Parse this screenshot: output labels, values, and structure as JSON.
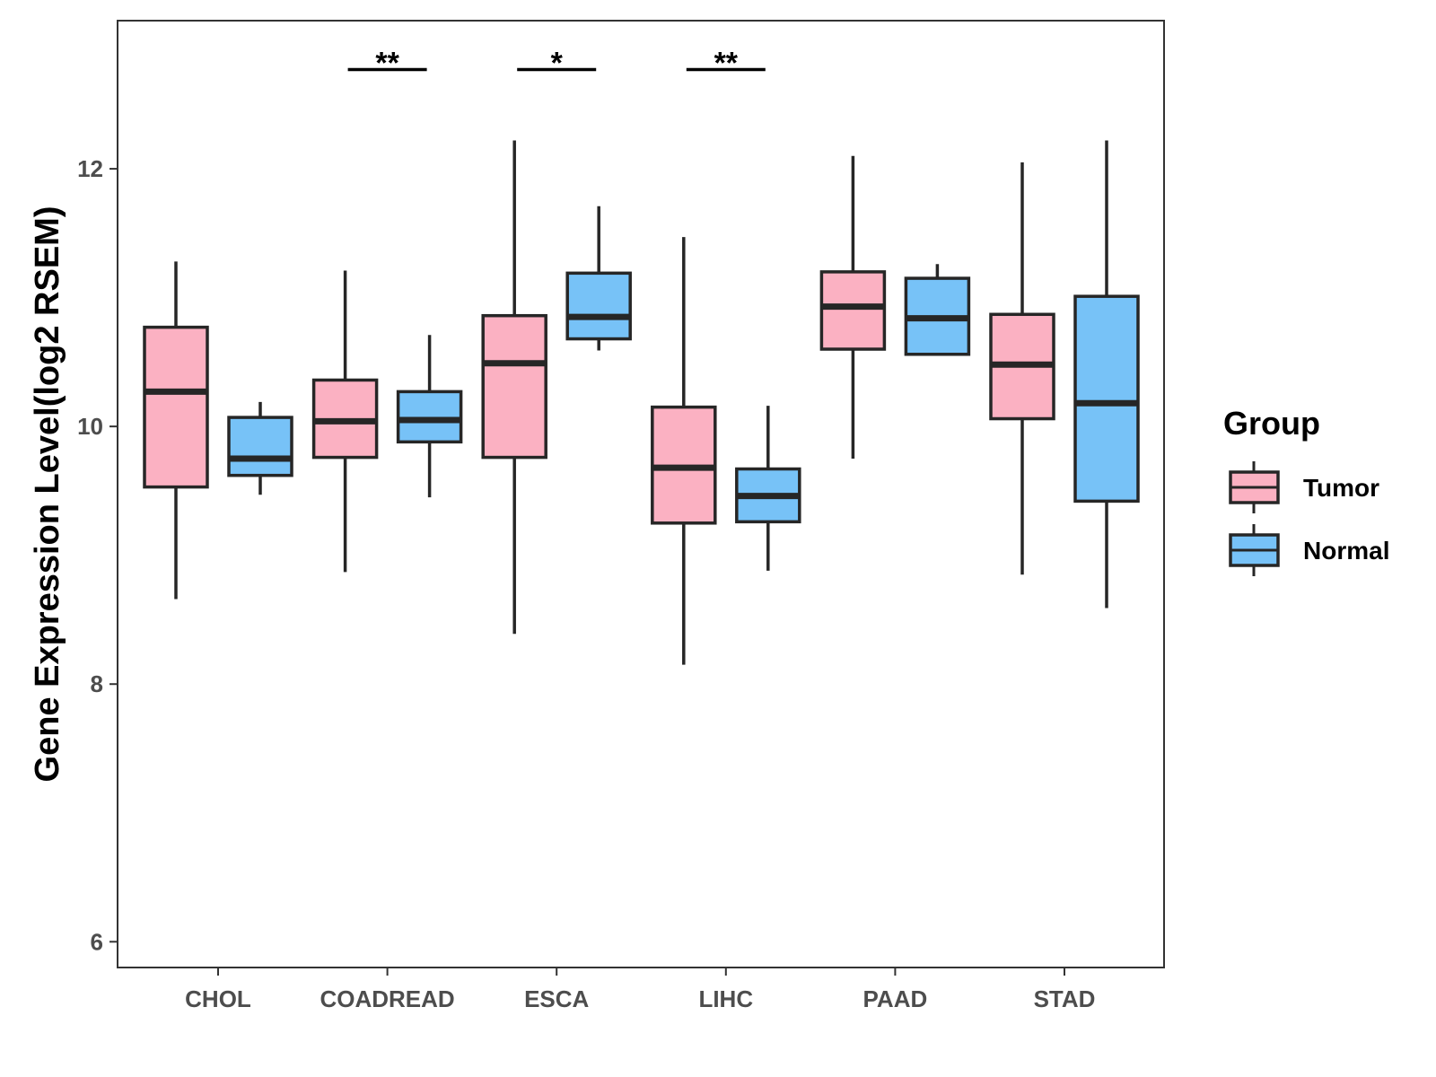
{
  "chart_data": {
    "type": "boxplot",
    "xlabel": "",
    "ylabel": "Gene Expression Level(log2 RSEM)",
    "ylim": [
      5.8,
      13.15
    ],
    "yticks": [
      6,
      8,
      10,
      12
    ],
    "categories": [
      "CHOL",
      "COADREAD",
      "ESCA",
      "LIHC",
      "PAAD",
      "STAD"
    ],
    "legend": {
      "title": "Group",
      "position": "right",
      "entries": [
        "Tumor",
        "Normal"
      ]
    },
    "series": [
      {
        "name": "Tumor",
        "color": "#FBB1C2",
        "boxes": [
          {
            "category": "CHOL",
            "min": 8.66,
            "q1": 9.53,
            "median": 10.27,
            "q3": 10.77,
            "max": 11.28
          },
          {
            "category": "COADREAD",
            "min": 8.87,
            "q1": 9.76,
            "median": 10.04,
            "q3": 10.36,
            "max": 11.21
          },
          {
            "category": "ESCA",
            "min": 8.39,
            "q1": 9.76,
            "median": 10.49,
            "q3": 10.86,
            "max": 12.22
          },
          {
            "category": "LIHC",
            "min": 8.15,
            "q1": 9.25,
            "median": 9.68,
            "q3": 10.15,
            "max": 11.47
          },
          {
            "category": "PAAD",
            "min": 9.75,
            "q1": 10.6,
            "median": 10.93,
            "q3": 11.2,
            "max": 12.1
          },
          {
            "category": "STAD",
            "min": 8.85,
            "q1": 10.06,
            "median": 10.48,
            "q3": 10.87,
            "max": 12.05
          }
        ]
      },
      {
        "name": "Normal",
        "color": "#77C2F7",
        "boxes": [
          {
            "category": "CHOL",
            "min": 9.47,
            "q1": 9.62,
            "median": 9.75,
            "q3": 10.07,
            "max": 10.19
          },
          {
            "category": "COADREAD",
            "min": 9.45,
            "q1": 9.88,
            "median": 10.05,
            "q3": 10.27,
            "max": 10.71
          },
          {
            "category": "ESCA",
            "min": 10.59,
            "q1": 10.68,
            "median": 10.85,
            "q3": 11.19,
            "max": 11.71
          },
          {
            "category": "LIHC",
            "min": 8.88,
            "q1": 9.26,
            "median": 9.46,
            "q3": 9.67,
            "max": 10.16
          },
          {
            "category": "PAAD",
            "min": 10.56,
            "q1": 10.56,
            "median": 10.84,
            "q3": 11.15,
            "max": 11.26
          },
          {
            "category": "STAD",
            "min": 8.59,
            "q1": 9.42,
            "median": 10.18,
            "q3": 11.01,
            "max": 12.22
          }
        ]
      }
    ],
    "significance": [
      {
        "category": "COADREAD",
        "label": "**",
        "y": 12.77
      },
      {
        "category": "ESCA",
        "label": "*",
        "y": 12.77
      },
      {
        "category": "LIHC",
        "label": "**",
        "y": 12.77
      }
    ]
  }
}
